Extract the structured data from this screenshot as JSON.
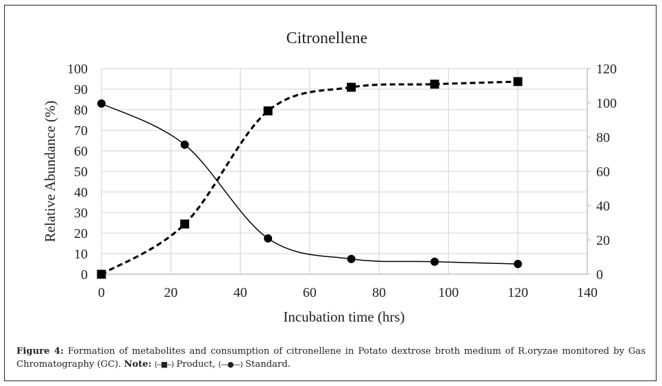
{
  "chart_data": {
    "type": "line",
    "title": "Citronellene",
    "xlabel": "Incubation time (hrs)",
    "ylabel": "Relative Abundance (%)",
    "y2label": "",
    "xlim": [
      0,
      140
    ],
    "ylim": [
      0,
      100
    ],
    "y2lim": [
      0,
      120
    ],
    "x_ticks": [
      0,
      20,
      40,
      60,
      80,
      100,
      120,
      140
    ],
    "y_ticks": [
      0,
      10,
      20,
      30,
      40,
      50,
      60,
      70,
      80,
      90,
      100
    ],
    "y2_ticks": [
      0,
      20,
      40,
      60,
      80,
      100,
      120
    ],
    "grid": true,
    "x": [
      0,
      24,
      48,
      72,
      96,
      120
    ],
    "series": [
      {
        "name": "Standard",
        "axis": "left",
        "style": "solid",
        "marker": "circle",
        "color": "#000000",
        "values": [
          83,
          63,
          17.4,
          7.4,
          6.1,
          5.0
        ]
      },
      {
        "name": "Product",
        "axis": "right",
        "style": "dashed",
        "marker": "square",
        "color": "#000000",
        "values": [
          0,
          29.3,
          95.3,
          109.1,
          110.9,
          112.4
        ]
      }
    ]
  },
  "caption": {
    "figure_label": "Figure 4:",
    "text": " Formation of metabolites and consumption of citronellene in Potato dextrose broth medium of R.oryzae monitored by Gas Chromatography (GC). ",
    "note_label": "Note:",
    "product_glyph": "(--■--)",
    "product_label": " Product, ",
    "standard_glyph": "(—●—)",
    "standard_label": " Standard."
  },
  "colors": {
    "grid": "#d9d9d9",
    "axis": "#bfbfbf",
    "text": "#222222",
    "series": "#000000"
  }
}
